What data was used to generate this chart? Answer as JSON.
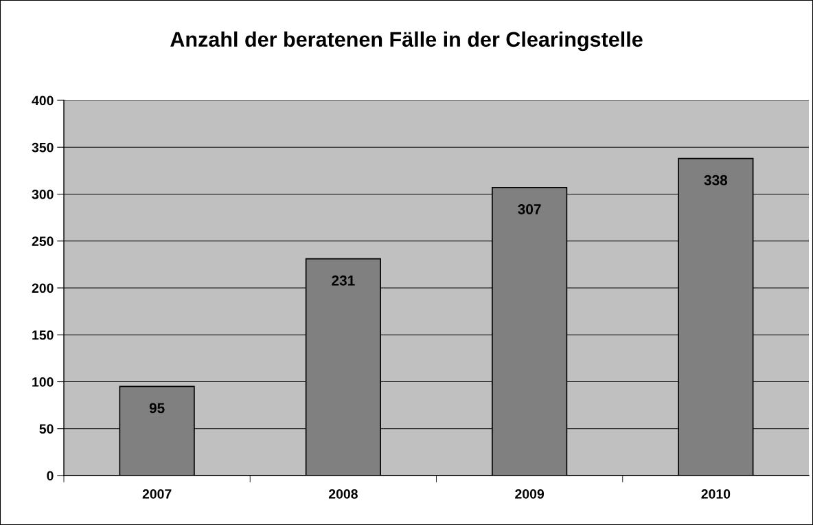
{
  "chart_data": {
    "type": "bar",
    "title": "Anzahl der beratenen Fälle in der Clearingstelle",
    "categories": [
      "2007",
      "2008",
      "2009",
      "2010"
    ],
    "values": [
      95,
      231,
      307,
      338
    ],
    "color": "#808080",
    "ylim": [
      0,
      400
    ],
    "yticks": [
      0,
      50,
      100,
      150,
      200,
      250,
      300,
      350,
      400
    ],
    "grid": "y",
    "data_labels": true,
    "legend": false
  }
}
